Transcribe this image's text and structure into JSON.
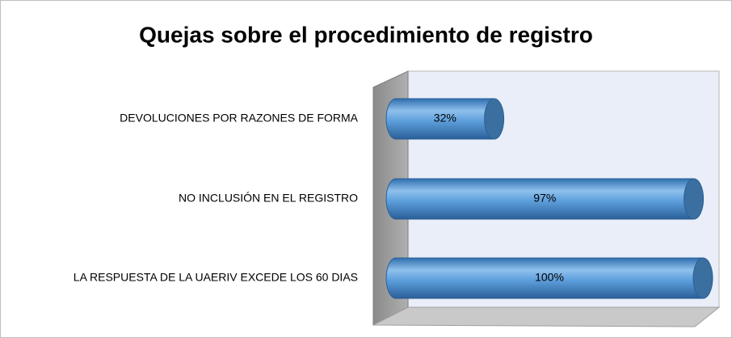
{
  "chart_data": {
    "type": "bar",
    "orientation": "horizontal",
    "title": "Quejas sobre el procedimiento de registro",
    "categories": [
      "DEVOLUCIONES POR RAZONES DE FORMA",
      "NO INCLUSIÓN EN EL REGISTRO",
      "LA RESPUESTA DE LA UAERIV EXCEDE LOS 60 DIAS"
    ],
    "values": [
      32,
      97,
      100
    ],
    "value_labels": [
      "32%",
      "97%",
      "100%"
    ],
    "color": "#5b9bd5",
    "xlim": [
      0,
      100
    ]
  }
}
